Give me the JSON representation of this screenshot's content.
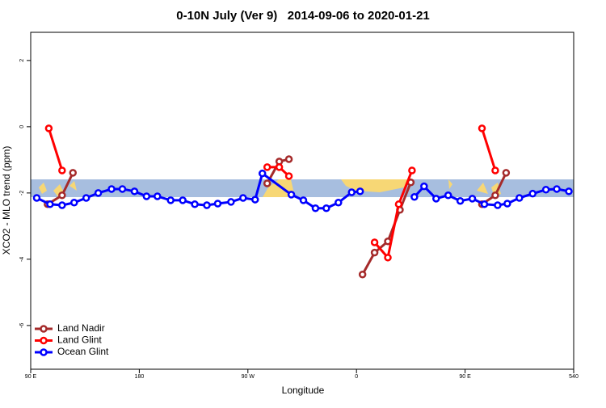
{
  "chart_data": {
    "type": "line",
    "title": "0-10N July (Ver 9)   2014-09-06 to 2020-01-21",
    "x_label": "Longitude",
    "y_label": "XCO2 - MLO trend (ppm)",
    "xlim": [
      90,
      540
    ],
    "ylim": [
      -7.32,
      2.85
    ],
    "xticks": [
      {
        "value": 90,
        "label": "90 E"
      },
      180,
      {
        "value": 270,
        "label": "90 W"
      },
      {
        "value": 360,
        "label": "0"
      },
      {
        "value": 450,
        "label": "90 E"
      },
      540
    ],
    "yticks": [
      2,
      0,
      -2,
      -4,
      -6
    ],
    "legend": "bottom-left",
    "series": [
      {
        "name": "Land Nadir",
        "color": "#a52a2a",
        "x": [
          104,
          116,
          125,
          null,
          286,
          296,
          304,
          null,
          365,
          375,
          386,
          396,
          405,
          null,
          464,
          475,
          484
        ],
        "values": [
          -2.34,
          -2.07,
          -1.39,
          null,
          -1.71,
          -1.05,
          -0.98,
          null,
          -4.46,
          -3.8,
          -3.46,
          -2.51,
          -1.68,
          null,
          -2.34,
          -2.07,
          -1.39
        ]
      },
      {
        "name": "Land Glint",
        "color": "#ff0000",
        "x": [
          105,
          116,
          null,
          286,
          296,
          304,
          null,
          375,
          386,
          395,
          406,
          null,
          464,
          475
        ],
        "values": [
          -0.05,
          -1.32,
          null,
          -1.22,
          -1.22,
          -1.49,
          null,
          -3.49,
          -3.95,
          -2.34,
          -1.32,
          null,
          -0.05,
          -1.32
        ]
      },
      {
        "name": "Ocean Glint",
        "color": "#0000ff",
        "x": [
          95,
          106,
          116,
          126,
          136,
          146,
          157,
          166,
          176,
          186,
          195,
          206,
          216,
          226,
          236,
          245,
          256,
          266,
          276,
          282,
          306,
          316,
          326,
          335,
          345,
          356,
          363,
          null,
          408,
          416,
          426,
          436,
          446,
          456,
          466,
          477,
          485,
          495,
          506,
          517,
          526,
          536
        ],
        "values": [
          -2.15,
          -2.34,
          -2.37,
          -2.29,
          -2.15,
          -2.0,
          -1.88,
          -1.88,
          -1.95,
          -2.1,
          -2.1,
          -2.22,
          -2.22,
          -2.34,
          -2.37,
          -2.32,
          -2.27,
          -2.15,
          -2.2,
          -1.41,
          -2.05,
          -2.22,
          -2.46,
          -2.46,
          -2.29,
          -1.98,
          -1.95,
          null,
          -2.12,
          -1.8,
          -2.17,
          -2.07,
          -2.24,
          -2.17,
          -2.34,
          -2.37,
          -2.32,
          -2.15,
          -2.02,
          -1.9,
          -1.88,
          -1.95
        ]
      }
    ]
  }
}
